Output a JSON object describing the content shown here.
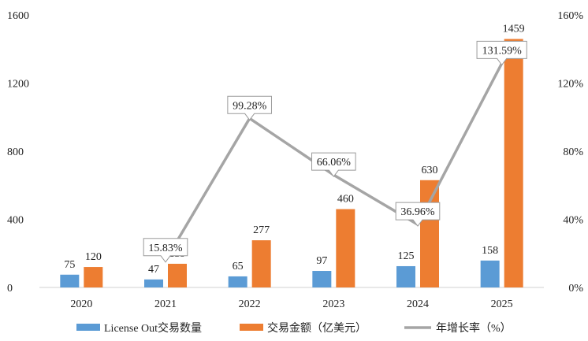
{
  "chart_data": {
    "type": "bar",
    "categories": [
      "2020",
      "2021",
      "2022",
      "2023",
      "2024",
      "2025"
    ],
    "series": [
      {
        "name": "License Out交易数量",
        "type": "bar",
        "axis": "left",
        "color": "#5b9bd5",
        "values": [
          75,
          47,
          65,
          97,
          125,
          158
        ]
      },
      {
        "name": "交易金额（亿美元）",
        "type": "bar",
        "axis": "left",
        "color": "#ed7d31",
        "values": [
          120,
          139,
          277,
          460,
          630,
          1459
        ]
      },
      {
        "name": "年增长率（%）",
        "type": "line",
        "axis": "right",
        "color": "#a5a5a5",
        "values": [
          null,
          15.83,
          99.28,
          66.06,
          36.96,
          131.59
        ],
        "labels": [
          "",
          "15.83%",
          "99.28%",
          "66.06%",
          "36.96%",
          "131.59%"
        ]
      }
    ],
    "y_left": {
      "min": 0,
      "max": 1600,
      "ticks": [
        "0",
        "400",
        "800",
        "1200",
        "1600"
      ]
    },
    "y_right": {
      "min": 0,
      "max": 160,
      "ticks": [
        "0%",
        "40%",
        "80%",
        "120%",
        "160%"
      ]
    },
    "grid": false,
    "legend": "bottom"
  }
}
